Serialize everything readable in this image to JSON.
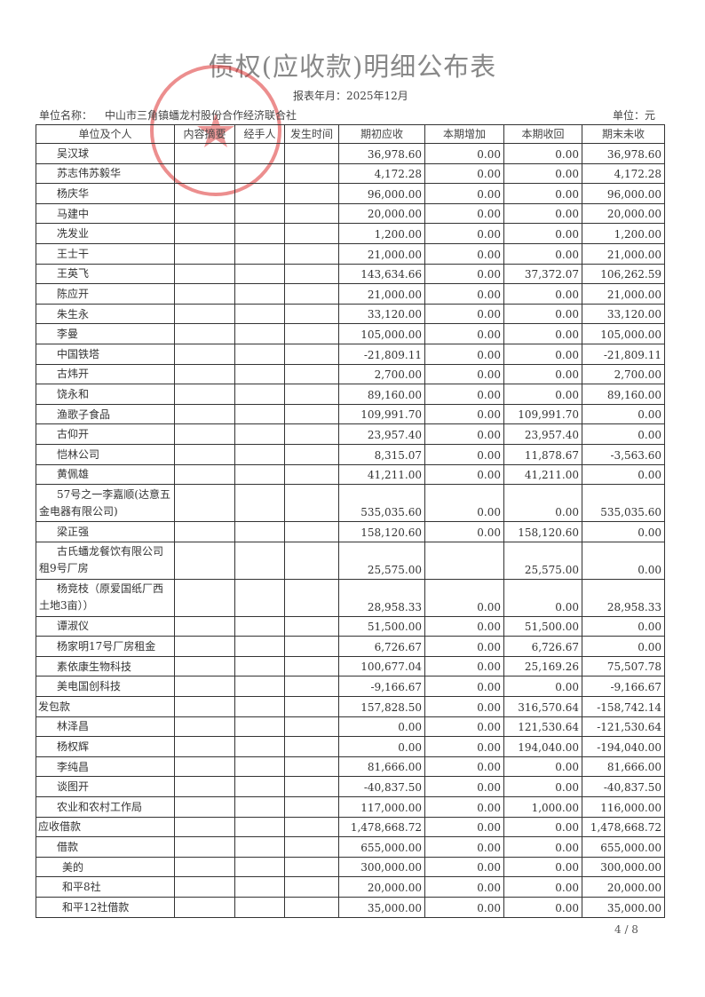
{
  "title": "债权(应收款)明细公布表",
  "report_date": "报表年月：2025年12月",
  "unit_label": "单位名称：",
  "unit_name": "中山市三角镇蟠龙村股份合作经济联合社",
  "currency": "单位：元",
  "columns": [
    "单位及个人",
    "内容摘要",
    "经手人",
    "发生时间",
    "期初应收",
    "本期增加",
    "本期收回",
    "期末未收"
  ],
  "rows": [
    {
      "name": "吴汉球",
      "level": 1,
      "opening": "36,978.60",
      "increase": "0.00",
      "recovered": "0.00",
      "closing": "36,978.60"
    },
    {
      "name": "苏志伟苏毅华",
      "level": 1,
      "opening": "4,172.28",
      "increase": "0.00",
      "recovered": "0.00",
      "closing": "4,172.28"
    },
    {
      "name": "杨庆华",
      "level": 1,
      "opening": "96,000.00",
      "increase": "0.00",
      "recovered": "0.00",
      "closing": "96,000.00"
    },
    {
      "name": "马建中",
      "level": 1,
      "opening": "20,000.00",
      "increase": "0.00",
      "recovered": "0.00",
      "closing": "20,000.00"
    },
    {
      "name": "冼发业",
      "level": 1,
      "opening": "1,200.00",
      "increase": "0.00",
      "recovered": "0.00",
      "closing": "1,200.00"
    },
    {
      "name": "王士干",
      "level": 1,
      "opening": "21,000.00",
      "increase": "0.00",
      "recovered": "0.00",
      "closing": "21,000.00"
    },
    {
      "name": "王英飞",
      "level": 1,
      "opening": "143,634.66",
      "increase": "0.00",
      "recovered": "37,372.07",
      "closing": "106,262.59"
    },
    {
      "name": "陈应开",
      "level": 1,
      "opening": "21,000.00",
      "increase": "0.00",
      "recovered": "0.00",
      "closing": "21,000.00"
    },
    {
      "name": "朱生永",
      "level": 1,
      "opening": "33,120.00",
      "increase": "0.00",
      "recovered": "0.00",
      "closing": "33,120.00"
    },
    {
      "name": "李曼",
      "level": 1,
      "opening": "105,000.00",
      "increase": "0.00",
      "recovered": "0.00",
      "closing": "105,000.00"
    },
    {
      "name": "中国铁塔",
      "level": 1,
      "opening": "-21,809.11",
      "increase": "0.00",
      "recovered": "0.00",
      "closing": "-21,809.11"
    },
    {
      "name": "古炜开",
      "level": 1,
      "opening": "2,700.00",
      "increase": "0.00",
      "recovered": "0.00",
      "closing": "2,700.00"
    },
    {
      "name": "饶永和",
      "level": 1,
      "opening": "89,160.00",
      "increase": "0.00",
      "recovered": "0.00",
      "closing": "89,160.00"
    },
    {
      "name": "渔歌子食品",
      "level": 1,
      "opening": "109,991.70",
      "increase": "0.00",
      "recovered": "109,991.70",
      "closing": "0.00"
    },
    {
      "name": "古仰开",
      "level": 1,
      "opening": "23,957.40",
      "increase": "0.00",
      "recovered": "23,957.40",
      "closing": "0.00"
    },
    {
      "name": "恺林公司",
      "level": 1,
      "opening": "8,315.07",
      "increase": "0.00",
      "recovered": "11,878.67",
      "closing": "-3,563.60"
    },
    {
      "name": "黄佩雄",
      "level": 1,
      "opening": "41,211.00",
      "increase": "0.00",
      "recovered": "41,211.00",
      "closing": "0.00"
    },
    {
      "name": "57号之一李嘉顺(达意五金电器有限公司)",
      "level": 1,
      "tall": true,
      "opening": "535,035.60",
      "increase": "0.00",
      "recovered": "0.00",
      "closing": "535,035.60"
    },
    {
      "name": "梁正强",
      "level": 1,
      "opening": "158,120.60",
      "increase": "0.00",
      "recovered": "158,120.60",
      "closing": "0.00"
    },
    {
      "name": "古氏蟠龙餐饮有限公司租9号厂房",
      "level": 1,
      "tall": true,
      "opening": "25,575.00",
      "increase": "",
      "recovered": "25,575.00",
      "closing": "0.00"
    },
    {
      "name": "杨竞枝（原爱国纸厂西土地3亩））",
      "level": 1,
      "tall": true,
      "opening": "28,958.33",
      "increase": "0.00",
      "recovered": "0.00",
      "closing": "28,958.33"
    },
    {
      "name": "谭淑仪",
      "level": 1,
      "opening": "51,500.00",
      "increase": "0.00",
      "recovered": "51,500.00",
      "closing": "0.00"
    },
    {
      "name": "杨家明17号厂房租金",
      "level": 1,
      "opening": "6,726.67",
      "increase": "0.00",
      "recovered": "6,726.67",
      "closing": "0.00"
    },
    {
      "name": "素依康生物科技",
      "level": 1,
      "opening": "100,677.04",
      "increase": "0.00",
      "recovered": "25,169.26",
      "closing": "75,507.78"
    },
    {
      "name": "美电国创科技",
      "level": 1,
      "opening": "-9,166.67",
      "increase": "0.00",
      "recovered": "0.00",
      "closing": "-9,166.67"
    },
    {
      "name": "发包款",
      "level": 0,
      "opening": "157,828.50",
      "increase": "0.00",
      "recovered": "316,570.64",
      "closing": "-158,742.14"
    },
    {
      "name": "林泽昌",
      "level": 1,
      "opening": "0.00",
      "increase": "0.00",
      "recovered": "121,530.64",
      "closing": "-121,530.64"
    },
    {
      "name": "杨权辉",
      "level": 1,
      "opening": "0.00",
      "increase": "0.00",
      "recovered": "194,040.00",
      "closing": "-194,040.00"
    },
    {
      "name": "李纯昌",
      "level": 1,
      "opening": "81,666.00",
      "increase": "0.00",
      "recovered": "0.00",
      "closing": "81,666.00"
    },
    {
      "name": "谈图开",
      "level": 1,
      "opening": "-40,837.50",
      "increase": "0.00",
      "recovered": "0.00",
      "closing": "-40,837.50"
    },
    {
      "name": "农业和农村工作局",
      "level": 1,
      "opening": "117,000.00",
      "increase": "0.00",
      "recovered": "1,000.00",
      "closing": "116,000.00"
    },
    {
      "name": "应收借款",
      "level": 0,
      "opening": "1,478,668.72",
      "increase": "0.00",
      "recovered": "0.00",
      "closing": "1,478,668.72"
    },
    {
      "name": "借款",
      "level": 1,
      "opening": "655,000.00",
      "increase": "0.00",
      "recovered": "0.00",
      "closing": "655,000.00"
    },
    {
      "name": "美的",
      "level": 2,
      "opening": "300,000.00",
      "increase": "0.00",
      "recovered": "0.00",
      "closing": "300,000.00"
    },
    {
      "name": "和平8社",
      "level": 2,
      "opening": "20,000.00",
      "increase": "0.00",
      "recovered": "0.00",
      "closing": "20,000.00"
    },
    {
      "name": "和平12社借款",
      "level": 2,
      "opening": "35,000.00",
      "increase": "0.00",
      "recovered": "0.00",
      "closing": "35,000.00"
    }
  ],
  "page": "4 / 8",
  "stamp_text": "中山市三角镇蟠龙村股份合作经济联合社",
  "colors": {
    "stamp": "#dc3232"
  }
}
